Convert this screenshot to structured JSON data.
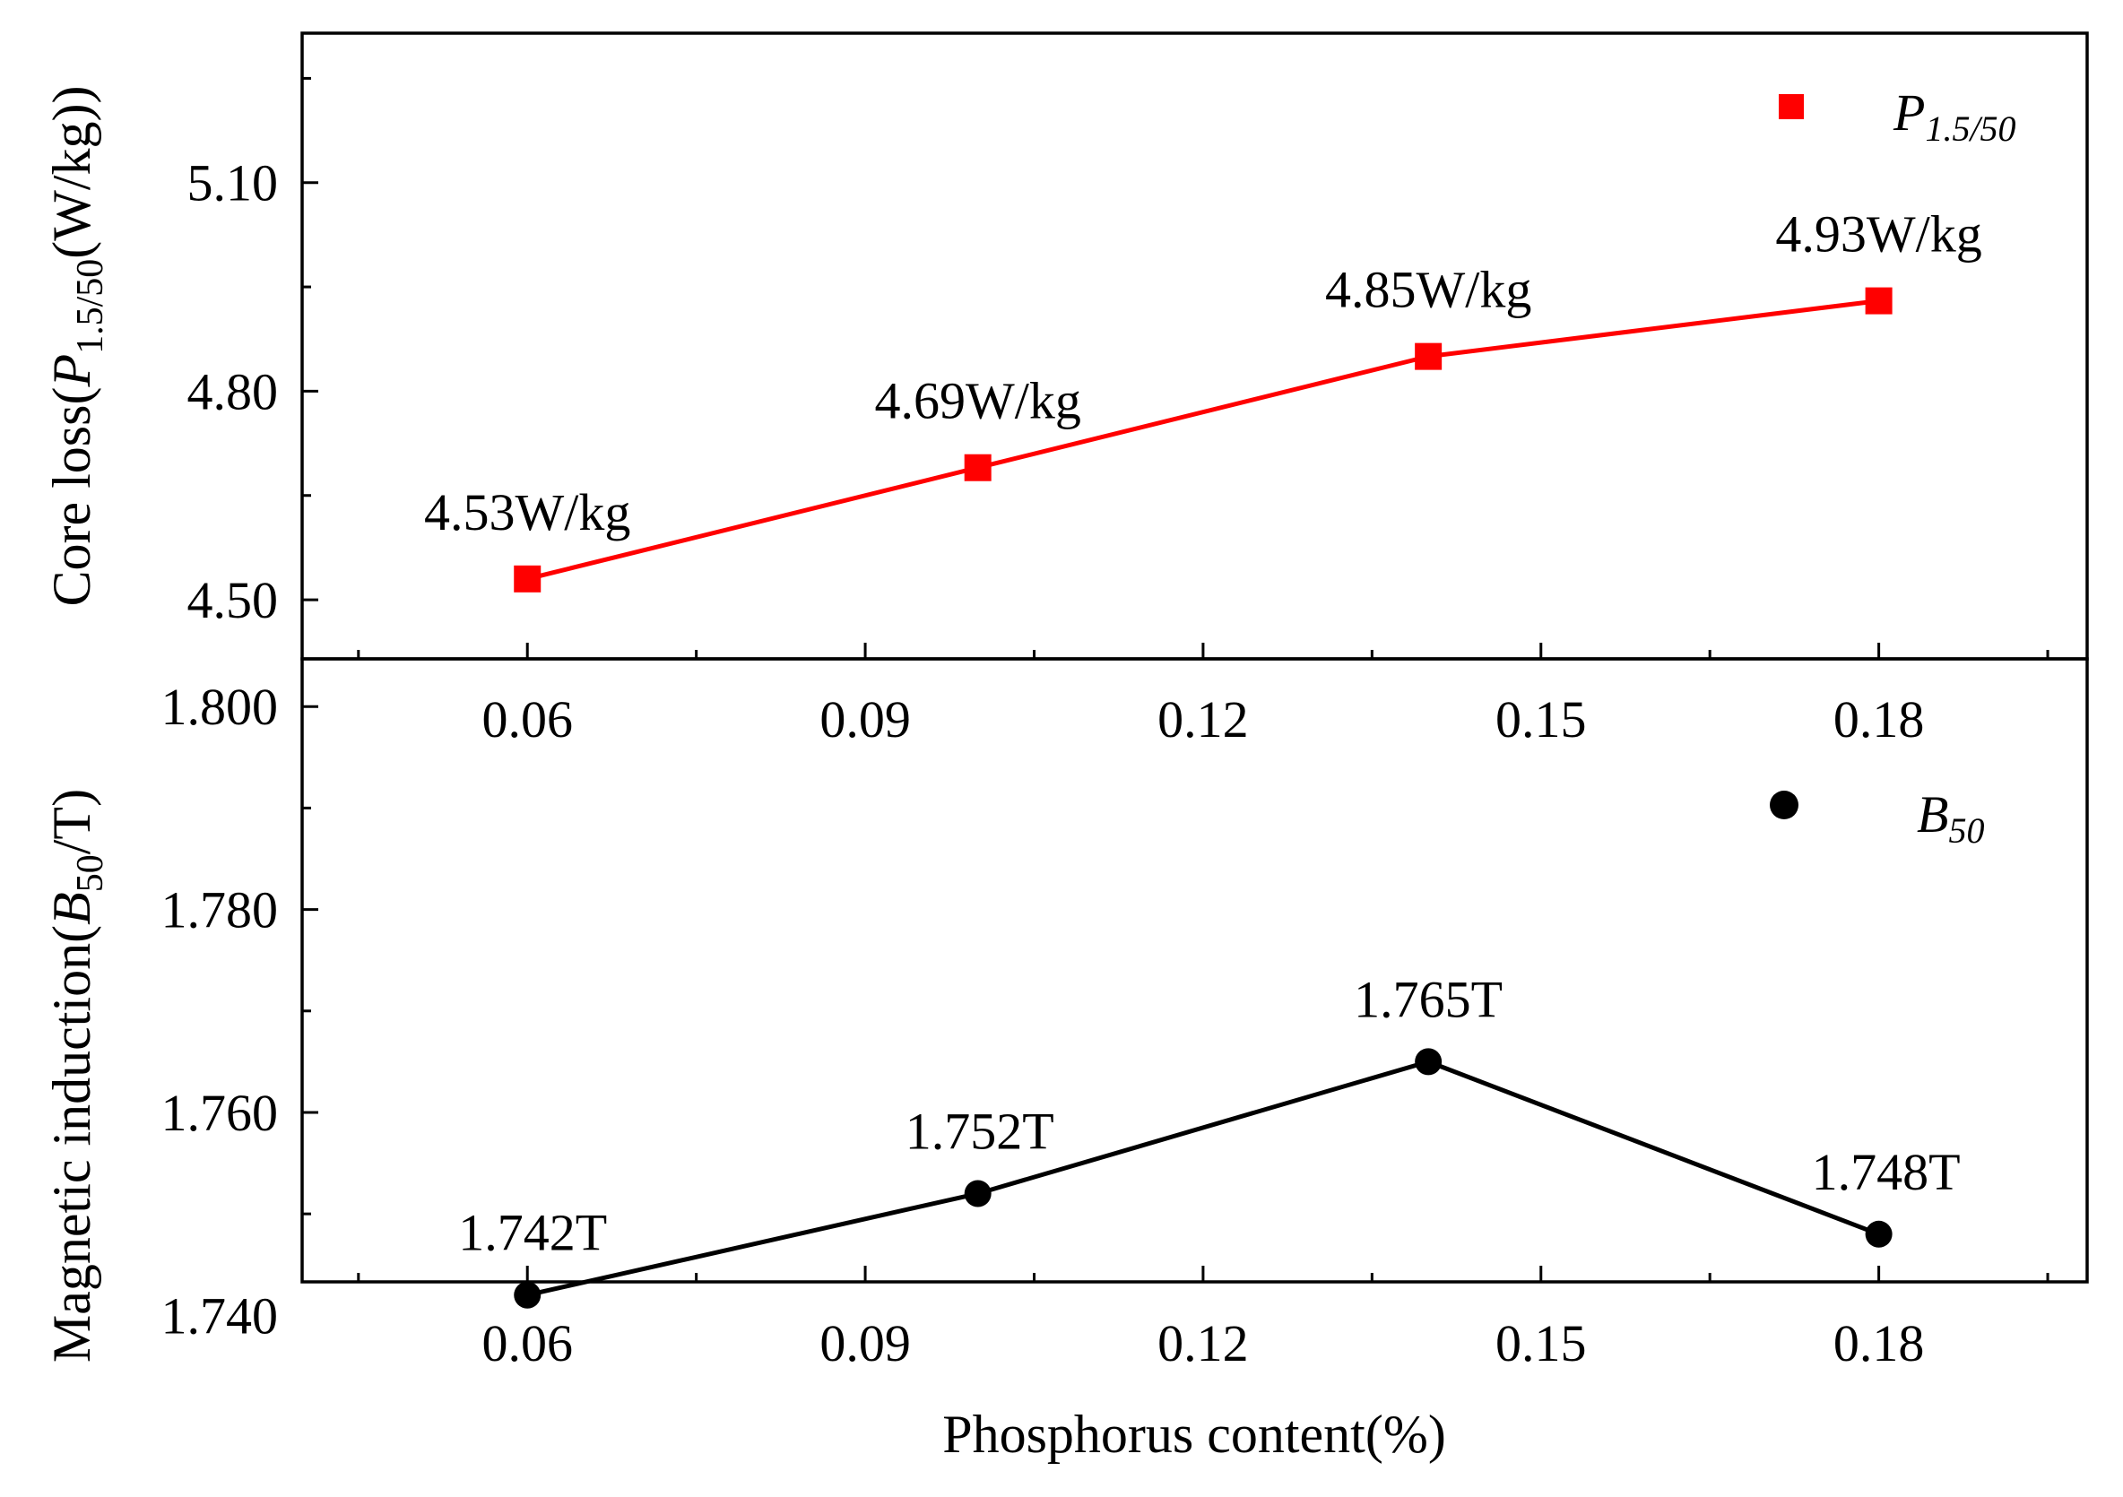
{
  "figure": {
    "xlabel": "Phosphorus content(%)",
    "x_ticks": [
      "0.06",
      "0.09",
      "0.12",
      "0.15",
      "0.18"
    ]
  },
  "chart_data": [
    {
      "type": "line",
      "panel": "top",
      "ylabel_main": "Core loss(",
      "ylabel_italic": "P",
      "ylabel_sub": "1.5/50",
      "ylabel_tail": "(W/kg))",
      "xlim": [
        0.04,
        0.1985
      ],
      "ylim": [
        4.415,
        5.315
      ],
      "x_tick_values": [
        0.06,
        0.09,
        0.12,
        0.15,
        0.18
      ],
      "y_tick_values": [
        4.5,
        4.8,
        5.1
      ],
      "y_tick_labels": [
        "4.50",
        "4.80",
        "5.10"
      ],
      "y_minor_tick_values": [
        4.65,
        4.95,
        5.25
      ],
      "x_minor_tick_values": [
        0.045,
        0.075,
        0.105,
        0.135,
        0.165,
        0.195
      ],
      "legend": {
        "symbol": "P",
        "subscript": "1.5/50",
        "placement": "top-right"
      },
      "series": [
        {
          "name": "P1.5/50",
          "color": "#ff0000",
          "marker": "square",
          "x": [
            0.06,
            0.1,
            0.14,
            0.18
          ],
          "y": [
            4.53,
            4.69,
            4.85,
            4.93
          ],
          "labels": [
            "4.53W/kg",
            "4.69W/kg",
            "4.85W/kg",
            "4.93W/kg"
          ]
        }
      ]
    },
    {
      "type": "line",
      "panel": "bottom",
      "ylabel_main": "Magnetic induction(",
      "ylabel_italic": "B",
      "ylabel_sub": "50",
      "ylabel_tail": "/T)",
      "xlim": [
        0.04,
        0.1985
      ],
      "ylim": [
        1.7433,
        1.8047
      ],
      "x_tick_values": [
        0.06,
        0.09,
        0.12,
        0.15,
        0.18
      ],
      "y_tick_values": [
        1.74,
        1.76,
        1.78,
        1.8
      ],
      "y_tick_labels": [
        "1.740",
        "1.760",
        "1.780",
        "1.800"
      ],
      "y_minor_tick_values": [
        1.75,
        1.77,
        1.79
      ],
      "x_minor_tick_values": [
        0.045,
        0.075,
        0.105,
        0.135,
        0.165,
        0.195
      ],
      "legend": {
        "symbol": "B",
        "subscript": "50",
        "placement": "top-right"
      },
      "series": [
        {
          "name": "B50",
          "color": "#000000",
          "marker": "circle",
          "x": [
            0.06,
            0.1,
            0.14,
            0.18
          ],
          "y": [
            1.742,
            1.752,
            1.765,
            1.748
          ],
          "labels": [
            "1.742T",
            "1.752T",
            "1.765T",
            "1.748T"
          ]
        }
      ]
    }
  ]
}
